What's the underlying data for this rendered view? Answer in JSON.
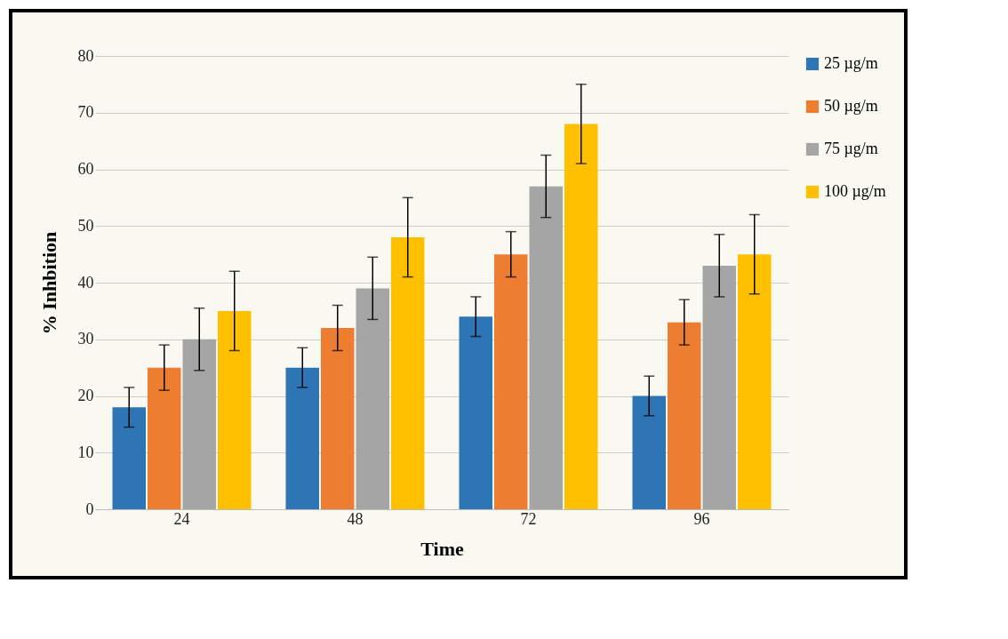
{
  "chart_data": {
    "type": "bar",
    "xlabel": "Time",
    "ylabel": "% Inhbition",
    "categories": [
      "24",
      "48",
      "72",
      "96"
    ],
    "series": [
      {
        "name": "25 µg/m",
        "color": "#2e75b6",
        "values": [
          18,
          25,
          34,
          20
        ],
        "errors": [
          3.5,
          3.5,
          3.5,
          3.5
        ]
      },
      {
        "name": "50 µg/m",
        "color": "#ed7d31",
        "values": [
          25,
          32,
          45,
          33
        ],
        "errors": [
          4,
          4,
          4,
          4
        ]
      },
      {
        "name": "75 µg/m",
        "color": "#a5a5a5",
        "values": [
          30,
          39,
          57,
          43
        ],
        "errors": [
          5.5,
          5.5,
          5.5,
          5.5
        ]
      },
      {
        "name": "100 µg/m",
        "color": "#ffc000",
        "values": [
          35,
          48,
          68,
          45
        ],
        "errors": [
          7,
          7,
          7,
          7
        ]
      }
    ],
    "ylim": [
      0,
      80
    ],
    "yticks": [
      0,
      10,
      20,
      30,
      40,
      50,
      60,
      70,
      80
    ],
    "grid": "y",
    "legend": "right"
  }
}
